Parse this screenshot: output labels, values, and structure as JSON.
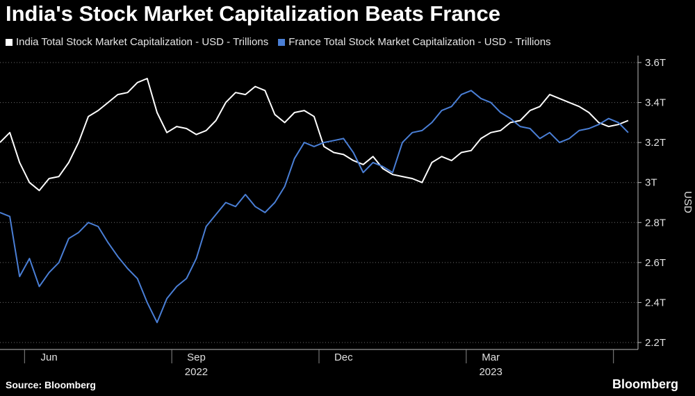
{
  "chart_data": {
    "type": "line",
    "title": "India's Stock Market Capitalization Beats France",
    "ylabel": "USD",
    "ylim": [
      2.2,
      3.6
    ],
    "yticks": [
      2.2,
      2.4,
      2.6,
      2.8,
      3.0,
      3.2,
      3.4,
      3.6
    ],
    "ytick_labels": [
      "2.2T",
      "2.4T",
      "2.6T",
      "2.8T",
      "3T",
      "3.2T",
      "3.4T",
      "3.6T"
    ],
    "xlim": [
      0,
      13
    ],
    "xticks": [
      {
        "x": 1.0,
        "label": "Jun",
        "year": ""
      },
      {
        "x": 4.0,
        "label": "Sep",
        "year": "2022"
      },
      {
        "x": 7.0,
        "label": "Dec",
        "year": ""
      },
      {
        "x": 10.0,
        "label": "Mar",
        "year": "2023"
      }
    ],
    "x_boundaries": [
      0.5,
      3.5,
      6.5,
      9.5,
      12.5
    ],
    "x": [
      0.0,
      0.2,
      0.4,
      0.6,
      0.8,
      1.0,
      1.2,
      1.4,
      1.6,
      1.8,
      2.0,
      2.2,
      2.4,
      2.6,
      2.8,
      3.0,
      3.2,
      3.4,
      3.6,
      3.8,
      4.0,
      4.2,
      4.4,
      4.6,
      4.8,
      5.0,
      5.2,
      5.4,
      5.6,
      5.8,
      6.0,
      6.2,
      6.4,
      6.6,
      6.8,
      7.0,
      7.2,
      7.4,
      7.6,
      7.8,
      8.0,
      8.2,
      8.4,
      8.6,
      8.8,
      9.0,
      9.2,
      9.4,
      9.6,
      9.8,
      10.0,
      10.2,
      10.4,
      10.6,
      10.8,
      11.0,
      11.2,
      11.4,
      11.6,
      11.8,
      12.0,
      12.2,
      12.4,
      12.6,
      12.8
    ],
    "series": [
      {
        "name": "India Total Stock Market Capitalization - USD - Trillions",
        "color": "#ffffff",
        "values": [
          3.2,
          3.25,
          3.1,
          3.0,
          2.96,
          3.02,
          3.03,
          3.1,
          3.2,
          3.33,
          3.36,
          3.4,
          3.44,
          3.45,
          3.5,
          3.52,
          3.35,
          3.25,
          3.28,
          3.27,
          3.24,
          3.26,
          3.31,
          3.4,
          3.45,
          3.44,
          3.48,
          3.46,
          3.34,
          3.3,
          3.35,
          3.36,
          3.33,
          3.18,
          3.15,
          3.14,
          3.11,
          3.09,
          3.13,
          3.07,
          3.04,
          3.03,
          3.02,
          3.0,
          3.1,
          3.13,
          3.11,
          3.15,
          3.16,
          3.22,
          3.25,
          3.26,
          3.3,
          3.31,
          3.36,
          3.38,
          3.44,
          3.42,
          3.4,
          3.38,
          3.35,
          3.3,
          3.28,
          3.29,
          3.31
        ]
      },
      {
        "name": "France Total Stock Market Capitalization - USD - Trillions",
        "color": "#4a7fd6",
        "values": [
          2.85,
          2.83,
          2.53,
          2.62,
          2.48,
          2.55,
          2.6,
          2.72,
          2.75,
          2.8,
          2.78,
          2.7,
          2.63,
          2.57,
          2.52,
          2.4,
          2.3,
          2.42,
          2.48,
          2.52,
          2.62,
          2.78,
          2.84,
          2.9,
          2.88,
          2.94,
          2.88,
          2.85,
          2.9,
          2.98,
          3.12,
          3.2,
          3.18,
          3.2,
          3.21,
          3.22,
          3.15,
          3.05,
          3.1,
          3.08,
          3.05,
          3.2,
          3.25,
          3.26,
          3.3,
          3.36,
          3.38,
          3.44,
          3.46,
          3.42,
          3.4,
          3.35,
          3.32,
          3.28,
          3.27,
          3.22,
          3.25,
          3.2,
          3.22,
          3.26,
          3.27,
          3.29,
          3.32,
          3.3,
          3.25
        ]
      }
    ]
  },
  "legend": {
    "items": [
      {
        "label": "India Total Stock Market Capitalization - USD - Trillions",
        "color": "#ffffff"
      },
      {
        "label": "France Total Stock Market Capitalization - USD - Trillions",
        "color": "#4a7fd6"
      }
    ]
  },
  "footer": {
    "source": "Source: Bloomberg",
    "brand": "Bloomberg"
  }
}
